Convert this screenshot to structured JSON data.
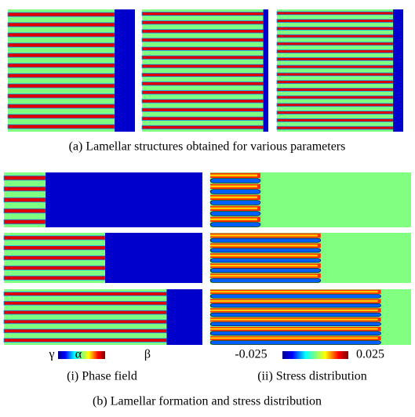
{
  "caption_a": "(a) Lamellar structures obtained for various parameters",
  "phase_legend": {
    "labels": [
      "γ",
      "α",
      "β"
    ],
    "caption": "(i) Phase field"
  },
  "stress_legend": {
    "min": -0.025,
    "max": 0.025,
    "caption": "(ii) Stress distribution"
  },
  "caption_b": "(b) Lamellar formation and stress distribution"
}
